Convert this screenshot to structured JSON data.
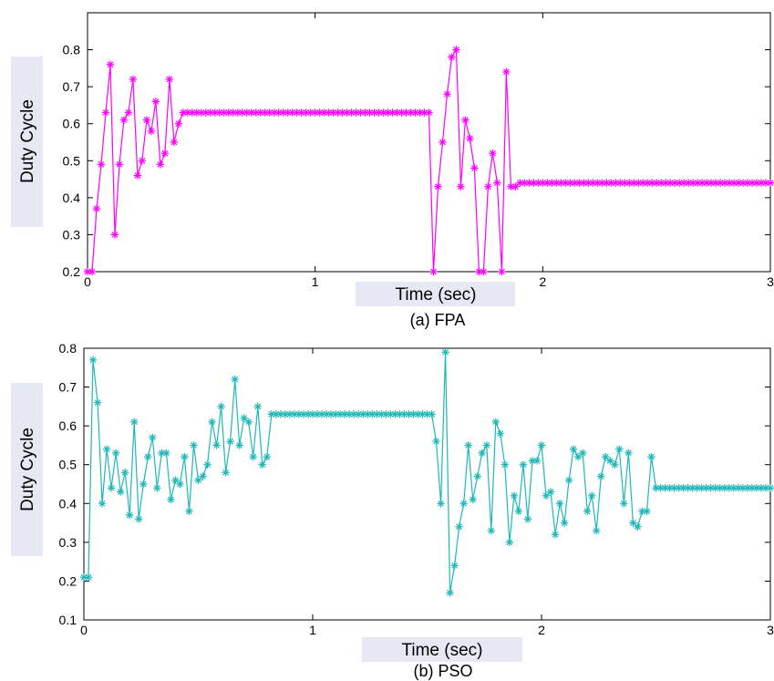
{
  "chart_data": [
    {
      "type": "line",
      "caption": "(a) FPA",
      "xlabel": "Time (sec)",
      "ylabel": "Duty Cycle",
      "xlim": [
        0,
        3
      ],
      "ylim": [
        0.2,
        0.9
      ],
      "xticks": [
        0,
        1,
        2,
        3
      ],
      "yticks": [
        0.2,
        0.3,
        0.4,
        0.5,
        0.6,
        0.7,
        0.8
      ],
      "xtick_labels": [
        "0",
        "1",
        "2",
        "3"
      ],
      "ytick_labels": [
        "0.2",
        "0.3",
        "0.4",
        "0.5",
        "0.6",
        "0.7",
        "0.8"
      ],
      "grid": false,
      "color": "#ff00ff",
      "marker": "asterisk",
      "series": [
        {
          "x": [
            0.0,
            0.02,
            0.04,
            0.06,
            0.08,
            0.1,
            0.12,
            0.14,
            0.16,
            0.18,
            0.2,
            0.22,
            0.24,
            0.26,
            0.28,
            0.3,
            0.32,
            0.34,
            0.36,
            0.38,
            0.4,
            0.42,
            0.44,
            1.5,
            1.52,
            1.54,
            1.56,
            1.58,
            1.6,
            1.62,
            1.64,
            1.66,
            1.68,
            1.7,
            1.72,
            1.74,
            1.76,
            1.78,
            1.8,
            1.82,
            1.84,
            1.86,
            1.88,
            1.9,
            3.0
          ],
          "y": [
            0.2,
            0.2,
            0.37,
            0.49,
            0.63,
            0.76,
            0.3,
            0.49,
            0.61,
            0.63,
            0.72,
            0.46,
            0.5,
            0.61,
            0.58,
            0.66,
            0.49,
            0.52,
            0.72,
            0.55,
            0.6,
            0.63,
            0.63,
            0.63,
            0.2,
            0.43,
            0.55,
            0.68,
            0.78,
            0.8,
            0.43,
            0.61,
            0.56,
            0.48,
            0.2,
            0.2,
            0.43,
            0.52,
            0.44,
            0.2,
            0.74,
            0.43,
            0.43,
            0.44,
            0.44
          ]
        }
      ]
    },
    {
      "type": "line",
      "caption": "(b) PSO",
      "xlabel": "Time (sec)",
      "ylabel": "Duty Cycle",
      "xlim": [
        0,
        3
      ],
      "ylim": [
        0.1,
        0.8
      ],
      "xticks": [
        0,
        1,
        2,
        3
      ],
      "yticks": [
        0.1,
        0.2,
        0.3,
        0.4,
        0.5,
        0.6,
        0.7,
        0.8
      ],
      "xtick_labels": [
        "0",
        "1",
        "2",
        "3"
      ],
      "ytick_labels": [
        "0.1",
        "0.2",
        "0.3",
        "0.4",
        "0.5",
        "0.6",
        "0.7",
        "0.8"
      ],
      "grid": false,
      "color": "#1fb8b8",
      "marker": "asterisk",
      "series": [
        {
          "x": [
            0.0,
            0.02,
            0.04,
            0.06,
            0.08,
            0.1,
            0.12,
            0.14,
            0.16,
            0.18,
            0.2,
            0.22,
            0.24,
            0.26,
            0.28,
            0.3,
            0.32,
            0.34,
            0.36,
            0.38,
            0.4,
            0.42,
            0.44,
            0.46,
            0.48,
            0.5,
            0.52,
            0.54,
            0.56,
            0.58,
            0.6,
            0.62,
            0.64,
            0.66,
            0.68,
            0.7,
            0.72,
            0.74,
            0.76,
            0.78,
            0.8,
            0.82,
            1.52,
            1.54,
            1.56,
            1.58,
            1.6,
            1.62,
            1.64,
            1.66,
            1.68,
            1.7,
            1.72,
            1.74,
            1.76,
            1.78,
            1.8,
            1.82,
            1.84,
            1.86,
            1.88,
            1.9,
            1.92,
            1.94,
            1.96,
            1.98,
            2.0,
            2.02,
            2.04,
            2.06,
            2.08,
            2.1,
            2.12,
            2.14,
            2.16,
            2.18,
            2.2,
            2.22,
            2.24,
            2.26,
            2.28,
            2.3,
            2.32,
            2.34,
            2.36,
            2.38,
            2.4,
            2.42,
            2.44,
            2.46,
            2.48,
            2.5,
            3.0
          ],
          "y": [
            0.21,
            0.21,
            0.77,
            0.66,
            0.4,
            0.54,
            0.44,
            0.53,
            0.43,
            0.48,
            0.37,
            0.61,
            0.36,
            0.45,
            0.52,
            0.57,
            0.44,
            0.53,
            0.53,
            0.41,
            0.46,
            0.45,
            0.52,
            0.38,
            0.55,
            0.46,
            0.47,
            0.5,
            0.61,
            0.55,
            0.65,
            0.48,
            0.56,
            0.72,
            0.55,
            0.62,
            0.61,
            0.52,
            0.65,
            0.5,
            0.52,
            0.63,
            0.63,
            0.56,
            0.4,
            0.79,
            0.17,
            0.24,
            0.34,
            0.4,
            0.55,
            0.41,
            0.47,
            0.53,
            0.55,
            0.33,
            0.61,
            0.58,
            0.5,
            0.3,
            0.42,
            0.38,
            0.5,
            0.36,
            0.51,
            0.51,
            0.55,
            0.42,
            0.43,
            0.32,
            0.4,
            0.35,
            0.46,
            0.54,
            0.52,
            0.53,
            0.38,
            0.42,
            0.33,
            0.47,
            0.52,
            0.51,
            0.5,
            0.54,
            0.4,
            0.53,
            0.35,
            0.34,
            0.38,
            0.38,
            0.52,
            0.44,
            0.44
          ]
        }
      ]
    }
  ]
}
